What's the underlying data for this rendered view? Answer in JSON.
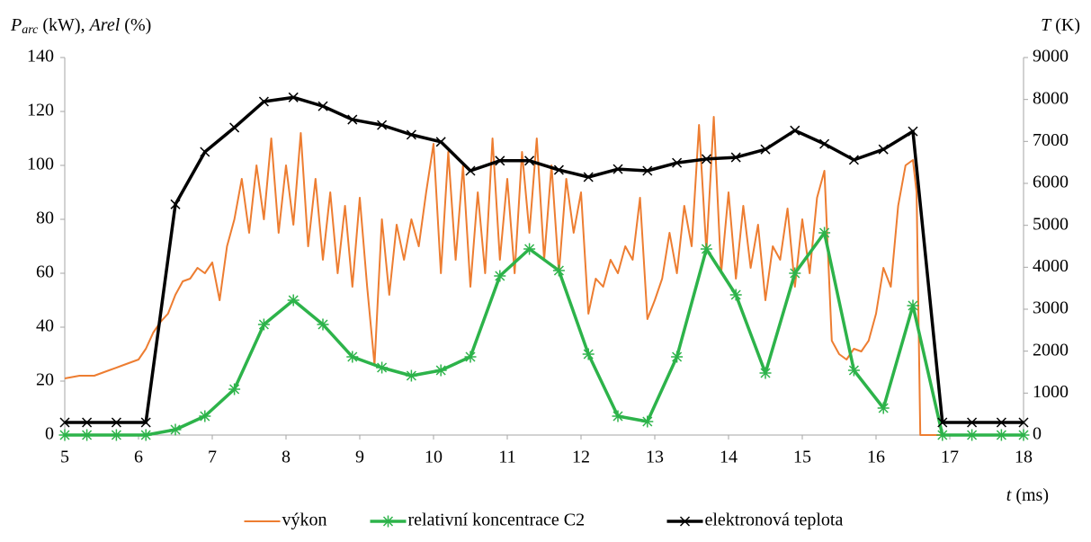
{
  "chart_data": {
    "type": "line",
    "ylabel": [
      "P",
      "arc",
      " (kW), ",
      "Arel",
      " (%)"
    ],
    "y2label": [
      "T",
      " (K)"
    ],
    "xlabel": [
      "t",
      " (ms)"
    ],
    "xlim": [
      5,
      18
    ],
    "xticks": [
      5,
      6,
      7,
      8,
      9,
      10,
      11,
      12,
      13,
      14,
      15,
      16,
      17,
      18
    ],
    "ylim": [
      0,
      140
    ],
    "yticks": [
      0,
      20,
      40,
      60,
      80,
      100,
      120,
      140
    ],
    "y2lim": [
      0,
      9000
    ],
    "y2ticks": [
      0,
      1000,
      2000,
      3000,
      4000,
      5000,
      6000,
      7000,
      8000,
      9000
    ],
    "grid": false,
    "legend": "bottom",
    "series": [
      {
        "name": "výkon",
        "color": "#ed7d31",
        "marker": "none",
        "x": [
          5,
          5.2,
          5.4,
          5.6,
          5.8,
          6.0,
          6.1,
          6.2,
          6.3,
          6.4,
          6.5,
          6.6,
          6.7,
          6.8,
          6.9,
          7.0,
          7.1,
          7.2,
          7.3,
          7.4,
          7.5,
          7.6,
          7.7,
          7.8,
          7.9,
          8.0,
          8.1,
          8.2,
          8.3,
          8.4,
          8.5,
          8.6,
          8.7,
          8.8,
          8.9,
          9.0,
          9.1,
          9.2,
          9.3,
          9.4,
          9.5,
          9.6,
          9.7,
          9.8,
          9.9,
          10.0,
          10.1,
          10.2,
          10.3,
          10.4,
          10.5,
          10.6,
          10.7,
          10.8,
          10.9,
          11.0,
          11.1,
          11.2,
          11.3,
          11.4,
          11.5,
          11.6,
          11.7,
          11.8,
          11.9,
          12.0,
          12.1,
          12.2,
          12.3,
          12.4,
          12.5,
          12.6,
          12.7,
          12.8,
          12.9,
          13.0,
          13.1,
          13.2,
          13.3,
          13.4,
          13.5,
          13.6,
          13.7,
          13.8,
          13.9,
          14.0,
          14.1,
          14.2,
          14.3,
          14.4,
          14.5,
          14.6,
          14.7,
          14.8,
          14.9,
          15.0,
          15.1,
          15.2,
          15.3,
          15.4,
          15.5,
          15.6,
          15.7,
          15.8,
          15.9,
          16.0,
          16.1,
          16.2,
          16.3,
          16.4,
          16.5,
          16.55,
          16.6,
          18
        ],
        "values": [
          21,
          22,
          22,
          24,
          26,
          28,
          32,
          38,
          42,
          45,
          52,
          57,
          58,
          62,
          60,
          64,
          50,
          70,
          80,
          95,
          75,
          100,
          80,
          110,
          75,
          100,
          78,
          112,
          70,
          95,
          65,
          90,
          60,
          85,
          55,
          88,
          55,
          26,
          80,
          52,
          78,
          65,
          80,
          70,
          90,
          108,
          60,
          105,
          65,
          100,
          55,
          90,
          60,
          110,
          65,
          95,
          60,
          105,
          75,
          110,
          65,
          100,
          60,
          95,
          75,
          90,
          45,
          58,
          55,
          65,
          60,
          70,
          65,
          88,
          43,
          50,
          58,
          75,
          60,
          85,
          70,
          115,
          68,
          118,
          60,
          90,
          58,
          85,
          62,
          78,
          50,
          70,
          65,
          84,
          55,
          80,
          60,
          88,
          98,
          35,
          30,
          28,
          32,
          31,
          35,
          45,
          62,
          55,
          85,
          100,
          102,
          90,
          0,
          0
        ]
      },
      {
        "name": "relativní koncentrace C2",
        "color": "#2db34a",
        "marker": "star",
        "x": [
          5,
          5.3,
          5.7,
          6.1,
          6.5,
          6.9,
          7.3,
          7.7,
          8.1,
          8.5,
          8.9,
          9.3,
          9.7,
          10.1,
          10.5,
          10.9,
          11.3,
          11.7,
          12.1,
          12.5,
          12.9,
          13.3,
          13.7,
          14.1,
          14.5,
          14.9,
          15.3,
          15.7,
          16.1,
          16.5,
          16.9,
          17.3,
          17.7,
          18
        ],
        "values": [
          0,
          0,
          0,
          0,
          2,
          7,
          17,
          41,
          50,
          41,
          29,
          25,
          22,
          24,
          29,
          59,
          69,
          61,
          30,
          7,
          5,
          29,
          69,
          52,
          23,
          60,
          75,
          24,
          10,
          48,
          0,
          0,
          0,
          0
        ]
      },
      {
        "name": "elektronová teplota",
        "color": "#000000",
        "marker": "cross",
        "axis": "y2",
        "x": [
          5,
          5.3,
          5.7,
          6.1,
          6.5,
          6.9,
          7.3,
          7.7,
          8.1,
          8.5,
          8.9,
          9.3,
          9.7,
          10.1,
          10.5,
          10.9,
          11.3,
          11.7,
          12.1,
          12.5,
          12.9,
          13.3,
          13.7,
          14.1,
          14.5,
          14.9,
          15.3,
          15.7,
          16.1,
          16.5,
          16.9,
          17.3,
          17.7,
          18
        ],
        "values": [
          300,
          300,
          300,
          300,
          5500,
          6750,
          7330,
          7950,
          8050,
          7840,
          7520,
          7390,
          7160,
          6990,
          6300,
          6540,
          6540,
          6320,
          6150,
          6340,
          6300,
          6490,
          6580,
          6620,
          6810,
          7260,
          6940,
          6560,
          6810,
          7240,
          300,
          300,
          300,
          300
        ]
      }
    ]
  }
}
